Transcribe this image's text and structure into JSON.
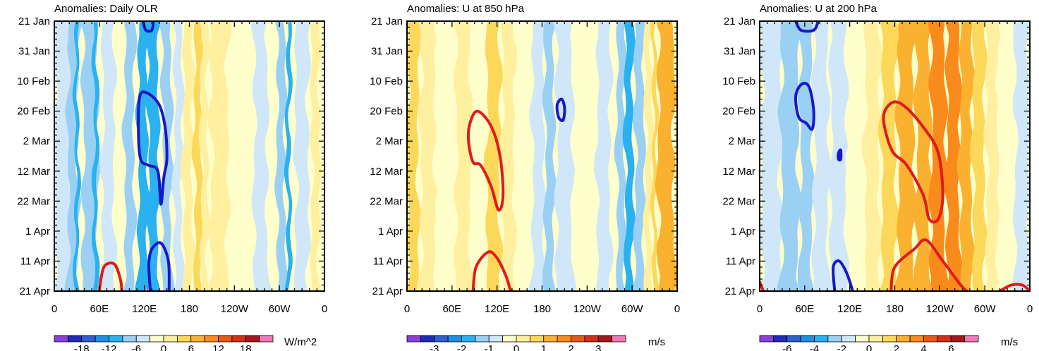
{
  "figure": {
    "type": "hovmoller-triptych"
  },
  "chart_data": [
    {
      "type": "heatmap",
      "title": "Anomalies: Daily OLR",
      "units": "W/m^2",
      "x_ticks": [
        "0",
        "60E",
        "120E",
        "180",
        "120W",
        "60W",
        "0"
      ],
      "x_range": [
        0,
        360
      ],
      "y_ticks": [
        "21 Jan",
        "31 Jan",
        "10 Feb",
        "20 Feb",
        "2 Mar",
        "12 Mar",
        "22 Mar",
        "1 Apr",
        "11 Apr",
        "21 Apr"
      ],
      "y_range_days": [
        0,
        90
      ],
      "colorbar": {
        "labels": [
          "-18",
          "-12",
          "-6",
          "0",
          "6",
          "12",
          "18"
        ],
        "colors": [
          "#8b3fd9",
          "#1e2ab8",
          "#2f5fd0",
          "#1f8fe0",
          "#2ab1ef",
          "#9ad0f3",
          "#cfe7f8",
          "#ffffcc",
          "#fff0a0",
          "#fcd85a",
          "#fbb130",
          "#f98a1c",
          "#e65a15",
          "#d32f18",
          "#a8171c",
          "#f07ab8"
        ]
      },
      "bands": [
        {
          "lon": 12,
          "w": 28,
          "c": "#cfe7f8"
        },
        {
          "lon": 25,
          "w": 15,
          "c": "#9ad0f3"
        },
        {
          "lon": 30,
          "w": 5,
          "c": "#2ab1ef"
        },
        {
          "lon": 48,
          "w": 22,
          "c": "#9ad0f3"
        },
        {
          "lon": 55,
          "w": 6,
          "c": "#2ab1ef"
        },
        {
          "lon": 72,
          "w": 18,
          "c": "#cfe7f8"
        },
        {
          "lon": 88,
          "w": 10,
          "c": "#ffffcc"
        },
        {
          "lon": 100,
          "w": 14,
          "c": "#9ad0f3"
        },
        {
          "lon": 118,
          "w": 14,
          "c": "#2ab1ef"
        },
        {
          "lon": 132,
          "w": 16,
          "c": "#2ab1ef"
        },
        {
          "lon": 150,
          "w": 14,
          "c": "#9ad0f3"
        },
        {
          "lon": 165,
          "w": 12,
          "c": "#cfe7f8"
        },
        {
          "lon": 178,
          "w": 14,
          "c": "#fff0a0"
        },
        {
          "lon": 192,
          "w": 12,
          "c": "#fcd85a"
        },
        {
          "lon": 200,
          "w": 10,
          "c": "#fff0a0"
        },
        {
          "lon": 220,
          "w": 26,
          "c": "#fff0a0"
        },
        {
          "lon": 250,
          "w": 24,
          "c": "#ffffcc"
        },
        {
          "lon": 275,
          "w": 20,
          "c": "#cfe7f8"
        },
        {
          "lon": 302,
          "w": 12,
          "c": "#9ad0f3"
        },
        {
          "lon": 312,
          "w": 6,
          "c": "#2ab1ef"
        },
        {
          "lon": 330,
          "w": 20,
          "c": "#cfe7f8"
        },
        {
          "lon": 348,
          "w": 12,
          "c": "#fff0a0"
        }
      ],
      "contours": [
        {
          "color": "#1818c8",
          "points": [
            [
              118,
              0
            ],
            [
              122,
              3
            ],
            [
              130,
              3
            ],
            [
              132,
              0
            ]
          ]
        },
        {
          "color": "#1818c8",
          "points": [
            [
              114,
              25
            ],
            [
              124,
              24
            ],
            [
              140,
              28
            ],
            [
              148,
              36
            ],
            [
              150,
              46
            ],
            [
              146,
              52
            ],
            [
              142,
              61
            ],
            [
              138,
              50
            ],
            [
              125,
              48
            ],
            [
              115,
              46
            ],
            [
              112,
              36
            ]
          ]
        },
        {
          "color": "#1818c8",
          "points": [
            [
              128,
              90
            ],
            [
              126,
              81
            ],
            [
              130,
              76
            ],
            [
              142,
              74
            ],
            [
              152,
              80
            ],
            [
              153,
              90
            ]
          ]
        },
        {
          "color": "#e01a1a",
          "points": [
            [
              60,
              90
            ],
            [
              66,
              82
            ],
            [
              80,
              81
            ],
            [
              88,
              86
            ],
            [
              90,
              90
            ]
          ]
        }
      ]
    },
    {
      "type": "heatmap",
      "title": "Anomalies: U at 850 hPa",
      "units": "m/s",
      "x_ticks": [
        "0",
        "60E",
        "120E",
        "180",
        "120W",
        "60W",
        "0"
      ],
      "x_range": [
        0,
        360
      ],
      "y_ticks": [
        "21 Jan",
        "31 Jan",
        "10 Feb",
        "20 Feb",
        "2 Mar",
        "12 Mar",
        "22 Mar",
        "1 Apr",
        "11 Apr",
        "21 Apr"
      ],
      "y_range_days": [
        0,
        90
      ],
      "colorbar": {
        "labels": [
          "-3",
          "-2",
          "-1",
          "0",
          "1",
          "2",
          "3"
        ],
        "colors": [
          "#8b3fd9",
          "#1e2ab8",
          "#2f5fd0",
          "#1f8fe0",
          "#2ab1ef",
          "#9ad0f3",
          "#cfe7f8",
          "#ffffcc",
          "#fff0a0",
          "#fcd85a",
          "#fbb130",
          "#f98a1c",
          "#e65a15",
          "#d32f18",
          "#a8171c",
          "#f07ab8"
        ]
      },
      "bands": [
        {
          "lon": 8,
          "w": 16,
          "c": "#fcd85a"
        },
        {
          "lon": 28,
          "w": 22,
          "c": "#fff0a0"
        },
        {
          "lon": 50,
          "w": 24,
          "c": "#ffffcc"
        },
        {
          "lon": 75,
          "w": 22,
          "c": "#fff0a0"
        },
        {
          "lon": 95,
          "w": 18,
          "c": "#ffffcc"
        },
        {
          "lon": 115,
          "w": 20,
          "c": "#fcd85a"
        },
        {
          "lon": 135,
          "w": 18,
          "c": "#fff0a0"
        },
        {
          "lon": 155,
          "w": 20,
          "c": "#ffffcc"
        },
        {
          "lon": 175,
          "w": 18,
          "c": "#cfe7f8"
        },
        {
          "lon": 190,
          "w": 14,
          "c": "#9ad0f3"
        },
        {
          "lon": 210,
          "w": 24,
          "c": "#cfe7f8"
        },
        {
          "lon": 238,
          "w": 26,
          "c": "#ffffcc"
        },
        {
          "lon": 262,
          "w": 20,
          "c": "#cfe7f8"
        },
        {
          "lon": 285,
          "w": 12,
          "c": "#9ad0f3"
        },
        {
          "lon": 296,
          "w": 12,
          "c": "#2ab1ef"
        },
        {
          "lon": 310,
          "w": 14,
          "c": "#9ad0f3"
        },
        {
          "lon": 322,
          "w": 10,
          "c": "#fff0a0"
        },
        {
          "lon": 330,
          "w": 6,
          "c": "#fcd85a"
        },
        {
          "lon": 345,
          "w": 24,
          "c": "#fbb130"
        }
      ],
      "contours": [
        {
          "color": "#e01a1a",
          "points": [
            [
              82,
              40
            ],
            [
              84,
              34
            ],
            [
              94,
              30
            ],
            [
              112,
              35
            ],
            [
              124,
              45
            ],
            [
              128,
              58
            ],
            [
              122,
              63
            ],
            [
              112,
              55
            ],
            [
              98,
              48
            ],
            [
              88,
              47
            ]
          ]
        },
        {
          "color": "#e01a1a",
          "points": [
            [
              88,
              90
            ],
            [
              92,
              82
            ],
            [
              108,
              77
            ],
            [
              120,
              79
            ],
            [
              132,
              85
            ],
            [
              138,
              90
            ]
          ]
        },
        {
          "color": "#1818c8",
          "points": [
            [
              200,
              28
            ],
            [
              206,
              26
            ],
            [
              210,
              29
            ],
            [
              208,
              33
            ],
            [
              202,
              32
            ]
          ]
        }
      ]
    },
    {
      "type": "heatmap",
      "title": "Anomalies: U at 200 hPa",
      "units": "m/s",
      "x_ticks": [
        "0",
        "60E",
        "120E",
        "180",
        "120W",
        "60W",
        "0"
      ],
      "x_range": [
        0,
        360
      ],
      "y_ticks": [
        "21 Jan",
        "31 Jan",
        "10 Feb",
        "20 Feb",
        "2 Mar",
        "12 Mar",
        "22 Mar",
        "1 Apr",
        "11 Apr",
        "21 Apr"
      ],
      "y_range_days": [
        0,
        90
      ],
      "colorbar": {
        "labels": [
          "-6",
          "-4",
          "-2",
          "0",
          "2",
          "4",
          "6"
        ],
        "colors": [
          "#8b3fd9",
          "#1e2ab8",
          "#2f5fd0",
          "#1f8fe0",
          "#2ab1ef",
          "#9ad0f3",
          "#cfe7f8",
          "#ffffcc",
          "#fff0a0",
          "#fcd85a",
          "#fbb130",
          "#f98a1c",
          "#e65a15",
          "#d32f18",
          "#a8171c",
          "#f07ab8"
        ]
      },
      "bands": [
        {
          "lon": 15,
          "w": 30,
          "c": "#cfe7f8"
        },
        {
          "lon": 40,
          "w": 26,
          "c": "#9ad0f3"
        },
        {
          "lon": 62,
          "w": 18,
          "c": "#9ad0f3"
        },
        {
          "lon": 82,
          "w": 22,
          "c": "#cfe7f8"
        },
        {
          "lon": 105,
          "w": 24,
          "c": "#cfe7f8"
        },
        {
          "lon": 128,
          "w": 22,
          "c": "#ffffcc"
        },
        {
          "lon": 150,
          "w": 22,
          "c": "#fff0a0"
        },
        {
          "lon": 172,
          "w": 22,
          "c": "#fcd85a"
        },
        {
          "lon": 195,
          "w": 24,
          "c": "#fbb130"
        },
        {
          "lon": 218,
          "w": 22,
          "c": "#fbb130"
        },
        {
          "lon": 238,
          "w": 22,
          "c": "#f98a1c"
        },
        {
          "lon": 258,
          "w": 20,
          "c": "#f98a1c"
        },
        {
          "lon": 275,
          "w": 18,
          "c": "#fbb130"
        },
        {
          "lon": 292,
          "w": 18,
          "c": "#fcd85a"
        },
        {
          "lon": 310,
          "w": 18,
          "c": "#fff0a0"
        },
        {
          "lon": 328,
          "w": 20,
          "c": "#ffffcc"
        },
        {
          "lon": 350,
          "w": 22,
          "c": "#cfe7f8"
        }
      ],
      "contours": [
        {
          "color": "#1818c8",
          "points": [
            [
              48,
              0
            ],
            [
              55,
              3
            ],
            [
              72,
              3
            ],
            [
              78,
              0
            ]
          ]
        },
        {
          "color": "#1818c8",
          "points": [
            [
              48,
              25
            ],
            [
              56,
              21
            ],
            [
              66,
              22
            ],
            [
              72,
              30
            ],
            [
              70,
              36
            ],
            [
              62,
              34
            ],
            [
              52,
              32
            ]
          ]
        },
        {
          "color": "#1818c8",
          "points": [
            [
              105,
              44
            ],
            [
              108,
              43
            ],
            [
              108,
              46
            ],
            [
              105,
              46
            ]
          ]
        },
        {
          "color": "#1818c8",
          "points": [
            [
              100,
              90
            ],
            [
              98,
              82
            ],
            [
              106,
              80
            ],
            [
              116,
              84
            ],
            [
              124,
              90
            ]
          ]
        },
        {
          "color": "#e01a1a",
          "points": [
            [
              165,
              32
            ],
            [
              178,
              27
            ],
            [
              196,
              29
            ],
            [
              220,
              36
            ],
            [
              238,
              44
            ],
            [
              244,
              58
            ],
            [
              238,
              66
            ],
            [
              226,
              66
            ],
            [
              218,
              58
            ],
            [
              196,
              48
            ],
            [
              176,
              43
            ]
          ]
        },
        {
          "color": "#e01a1a",
          "points": [
            [
              175,
              90
            ],
            [
              180,
              82
            ],
            [
              206,
              76
            ],
            [
              222,
              73
            ],
            [
              244,
              80
            ],
            [
              268,
              88
            ],
            [
              276,
              90
            ]
          ]
        },
        {
          "color": "#e01a1a",
          "points": [
            [
              320,
              90
            ],
            [
              335,
              88
            ],
            [
              350,
              88
            ],
            [
              360,
              90
            ]
          ]
        },
        {
          "color": "#e01a1a",
          "points": [
            [
              0,
              87
            ],
            [
              5,
              90
            ]
          ]
        }
      ]
    }
  ]
}
